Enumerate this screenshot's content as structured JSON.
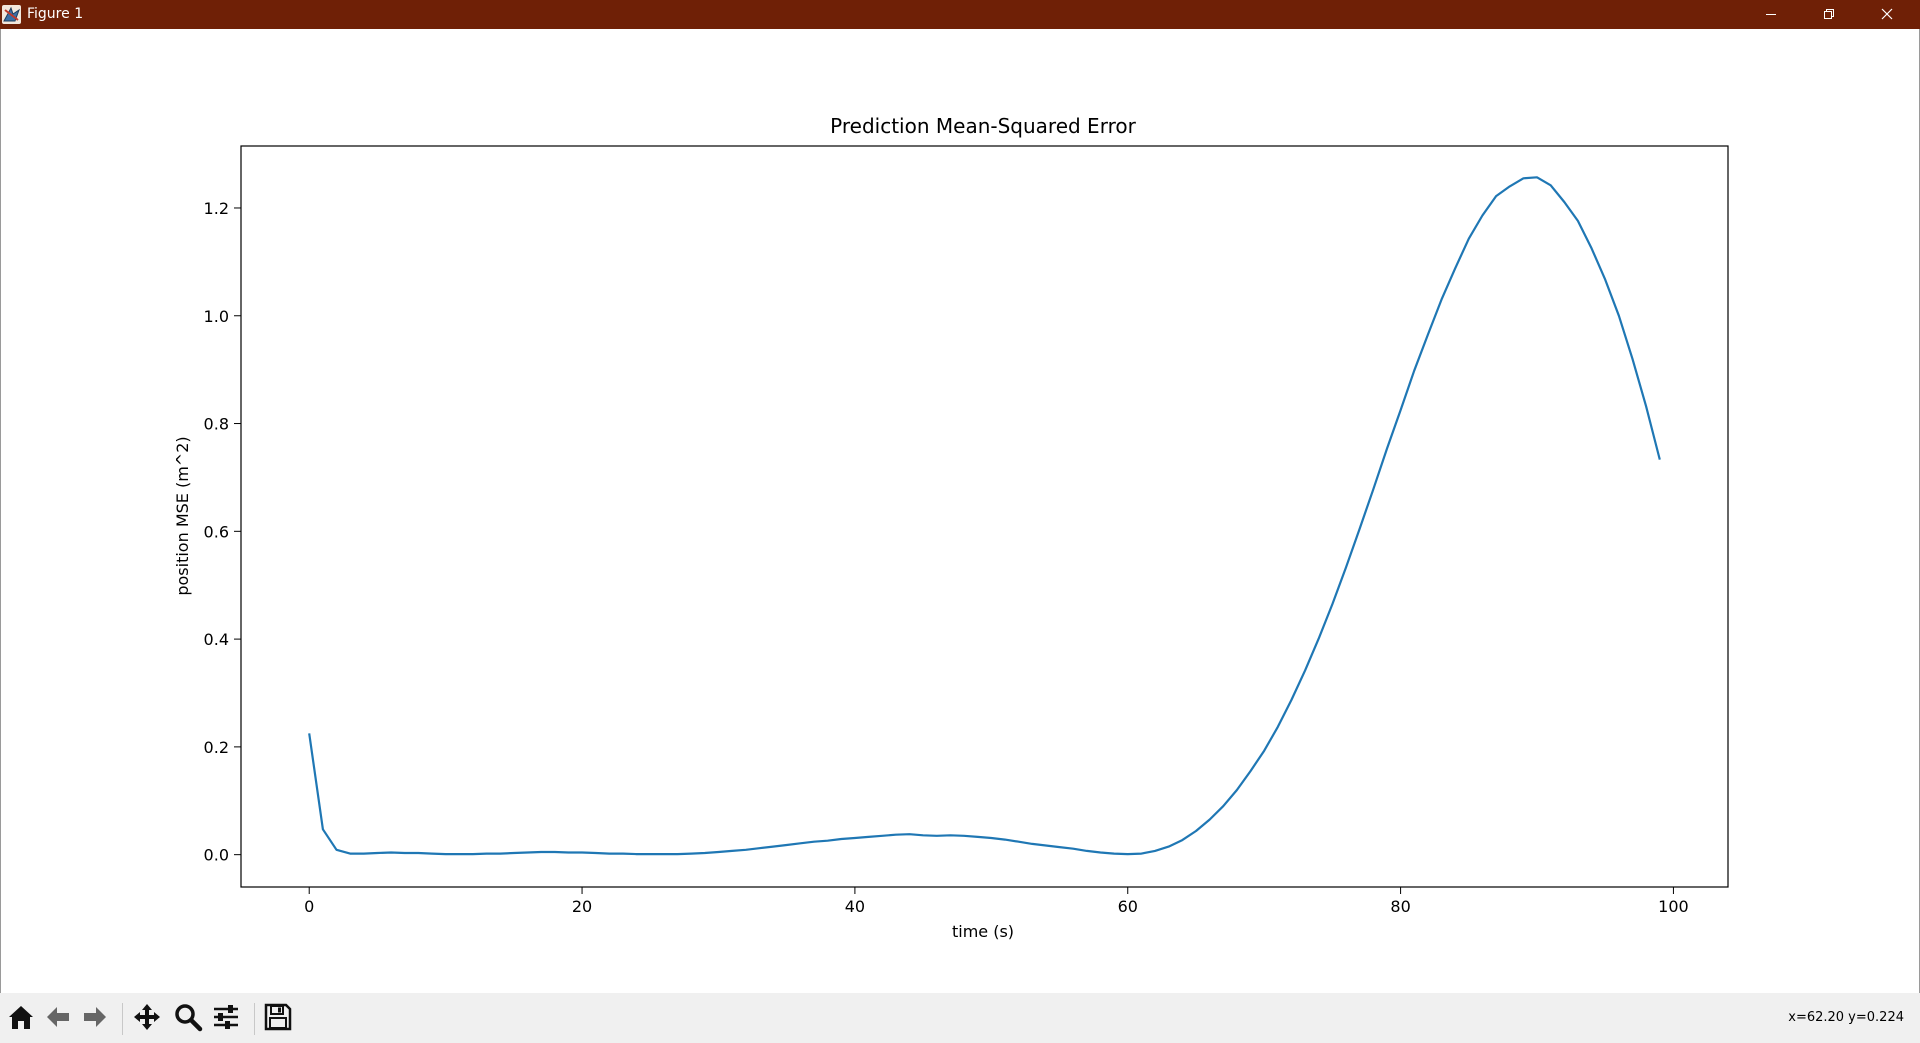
{
  "window": {
    "title": "Figure 1",
    "titlebar_color": "#6f2006",
    "icons": [
      "app-icon",
      "minimize-icon",
      "restore-icon",
      "close-icon"
    ]
  },
  "toolbar": {
    "buttons": [
      "home-icon",
      "back-arrow-icon",
      "forward-arrow-icon",
      "pan-icon",
      "zoom-icon",
      "configure-subplots-icon",
      "save-icon"
    ],
    "coords_text": "x=62.20 y=0.224"
  },
  "chart_data": {
    "type": "line",
    "title": "Prediction Mean-Squared Error",
    "xlabel": "time (s)",
    "ylabel": "position MSE (m^2)",
    "xlim": [
      -5,
      104
    ],
    "ylim": [
      -0.06,
      1.315
    ],
    "xticks": [
      0,
      20,
      40,
      60,
      80,
      100
    ],
    "yticks": [
      0.0,
      0.2,
      0.4,
      0.6,
      0.8,
      1.0,
      1.2
    ],
    "ytick_labels": [
      "0.0",
      "0.2",
      "0.4",
      "0.6",
      "0.8",
      "1.0",
      "1.2"
    ],
    "grid": false,
    "line_color": "#1f77b4",
    "series": [
      {
        "x": [
          0,
          1,
          2,
          3,
          4,
          5,
          6,
          7,
          8,
          9,
          10,
          11,
          12,
          13,
          14,
          15,
          16,
          17,
          18,
          19,
          20,
          21,
          22,
          23,
          24,
          25,
          26,
          27,
          28,
          29,
          30,
          31,
          32,
          33,
          34,
          35,
          36,
          37,
          38,
          39,
          40,
          41,
          42,
          43,
          44,
          45,
          46,
          47,
          48,
          49,
          50,
          51,
          52,
          53,
          54,
          55,
          56,
          57,
          58,
          59,
          60,
          61,
          62,
          63,
          64,
          65,
          66,
          67,
          68,
          69,
          70,
          71,
          72,
          73,
          74,
          75,
          76,
          77,
          78,
          79,
          80,
          81,
          82,
          83,
          84,
          85,
          86,
          87,
          88,
          89,
          90,
          91,
          92,
          93,
          94,
          95,
          96,
          97,
          98,
          99
        ],
        "y": [
          0.225,
          0.047,
          0.009,
          0.002,
          0.002,
          0.003,
          0.004,
          0.003,
          0.003,
          0.002,
          0.001,
          0.001,
          0.001,
          0.002,
          0.002,
          0.003,
          0.004,
          0.005,
          0.005,
          0.004,
          0.004,
          0.003,
          0.002,
          0.002,
          0.001,
          0.001,
          0.001,
          0.001,
          0.002,
          0.003,
          0.005,
          0.007,
          0.009,
          0.012,
          0.015,
          0.018,
          0.021,
          0.024,
          0.026,
          0.029,
          0.031,
          0.033,
          0.035,
          0.037,
          0.038,
          0.036,
          0.035,
          0.036,
          0.035,
          0.033,
          0.031,
          0.028,
          0.024,
          0.02,
          0.017,
          0.014,
          0.011,
          0.007,
          0.004,
          0.002,
          0.001,
          0.002,
          0.007,
          0.015,
          0.027,
          0.044,
          0.065,
          0.09,
          0.12,
          0.155,
          0.193,
          0.237,
          0.287,
          0.342,
          0.401,
          0.465,
          0.533,
          0.605,
          0.678,
          0.753,
          0.825,
          0.898,
          0.965,
          1.03,
          1.088,
          1.143,
          1.186,
          1.222,
          1.24,
          1.255,
          1.257,
          1.242,
          1.211,
          1.176,
          1.125,
          1.067,
          1.0,
          0.92,
          0.832,
          0.733
        ]
      }
    ]
  }
}
